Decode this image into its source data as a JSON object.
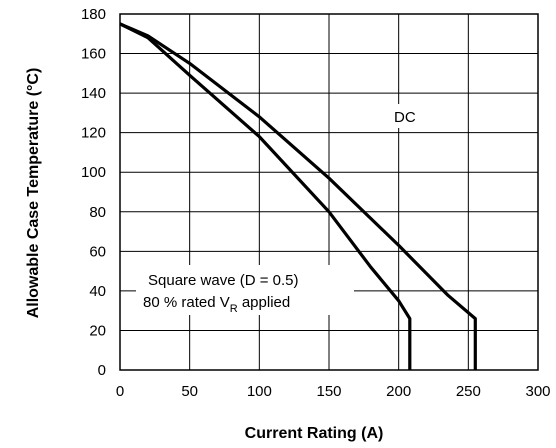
{
  "chart_data": {
    "type": "line",
    "xlabel": "Current Rating (A)",
    "ylabel": "Allowable Case Temperature (°C)",
    "xlim": [
      0,
      300
    ],
    "ylim": [
      0,
      180
    ],
    "x_ticks": [
      0,
      50,
      100,
      150,
      200,
      250,
      300
    ],
    "y_ticks": [
      0,
      20,
      40,
      60,
      80,
      100,
      120,
      140,
      160,
      180
    ],
    "grid": true,
    "series": [
      {
        "name": "DC",
        "points": [
          [
            0,
            175
          ],
          [
            20,
            169
          ],
          [
            50,
            155
          ],
          [
            100,
            128
          ],
          [
            150,
            97
          ],
          [
            200,
            63
          ],
          [
            235,
            38
          ],
          [
            255,
            26
          ],
          [
            255,
            0
          ]
        ]
      },
      {
        "name": "",
        "points": [
          [
            0,
            175
          ],
          [
            20,
            168
          ],
          [
            50,
            149
          ],
          [
            100,
            118
          ],
          [
            150,
            80
          ],
          [
            180,
            52
          ],
          [
            200,
            35
          ],
          [
            208,
            26
          ],
          [
            208,
            0
          ]
        ]
      }
    ],
    "annotations": {
      "dc_label": "DC",
      "square_line1": "Square wave (D = 0.5)",
      "square_line2_pre": "80 % rated V",
      "square_line2_sub": "R",
      "square_line2_post": " applied"
    }
  }
}
